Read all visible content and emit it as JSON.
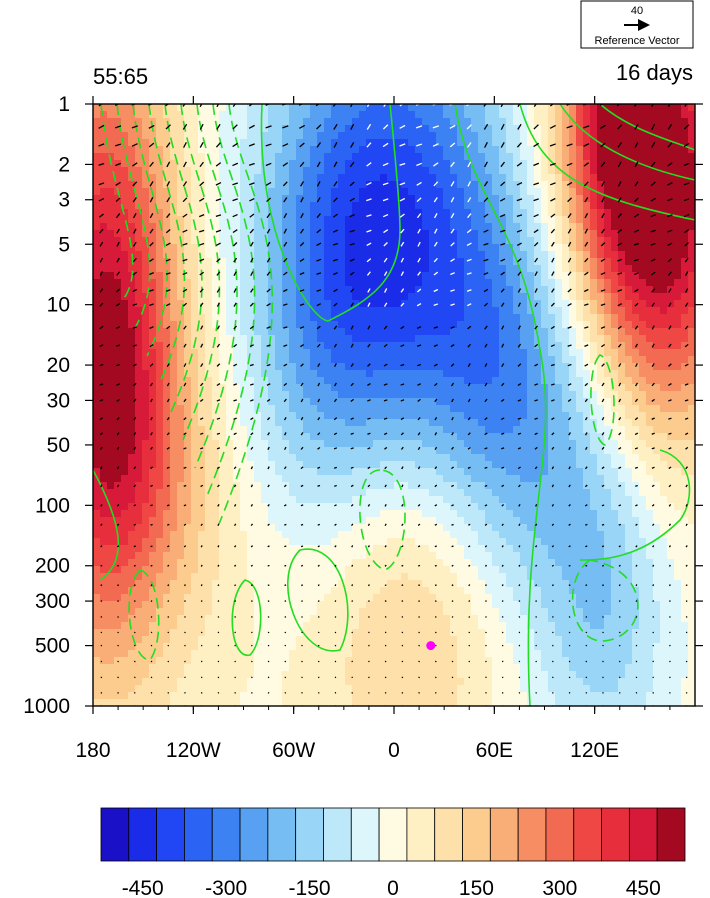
{
  "chart_data": {
    "type": "heatmap",
    "title_left": "55:65",
    "title_right": "16 days",
    "x_ticks": [
      {
        "lon": -180,
        "label": "180"
      },
      {
        "lon": -120,
        "label": "120W"
      },
      {
        "lon": -60,
        "label": "60W"
      },
      {
        "lon": 0,
        "label": "0"
      },
      {
        "lon": 60,
        "label": "60E"
      },
      {
        "lon": 120,
        "label": "120E"
      }
    ],
    "x_range": [
      -180,
      180
    ],
    "y_ticks": [
      {
        "p": 1,
        "label": "1"
      },
      {
        "p": 2,
        "label": "2"
      },
      {
        "p": 3,
        "label": "3"
      },
      {
        "p": 5,
        "label": "5"
      },
      {
        "p": 10,
        "label": "10"
      },
      {
        "p": 20,
        "label": "20"
      },
      {
        "p": 30,
        "label": "30"
      },
      {
        "p": 50,
        "label": "50"
      },
      {
        "p": 100,
        "label": "100"
      },
      {
        "p": 200,
        "label": "200"
      },
      {
        "p": 300,
        "label": "300"
      },
      {
        "p": 500,
        "label": "500"
      },
      {
        "p": 1000,
        "label": "1000"
      }
    ],
    "y_range": [
      1000,
      1
    ],
    "y_scale": "log",
    "colorbar": {
      "levels": [
        -525,
        -475,
        -425,
        -375,
        -325,
        -275,
        -225,
        -175,
        -125,
        -75,
        -25,
        25,
        75,
        125,
        175,
        225,
        275,
        325,
        375,
        425,
        475,
        525
      ],
      "colors": [
        "#1a10c8",
        "#1b2ce8",
        "#2147f4",
        "#2b63f5",
        "#3d82f2",
        "#58a0f2",
        "#76bdf4",
        "#99d5f7",
        "#bce8fa",
        "#dcf6fc",
        "#fffbe2",
        "#fff0c4",
        "#fde0aa",
        "#fccc8e",
        "#f9ae78",
        "#f68d63",
        "#f36a52",
        "#ee4744",
        "#e62e3c",
        "#d7193a",
        "#a30a22"
      ],
      "labels": [
        {
          "value": -450,
          "label": "-450"
        },
        {
          "value": -300,
          "label": "-300"
        },
        {
          "value": -150,
          "label": "-150"
        },
        {
          "value": 0,
          "label": "0"
        },
        {
          "value": 150,
          "label": "150"
        },
        {
          "value": 300,
          "label": "300"
        },
        {
          "value": 450,
          "label": "450"
        }
      ]
    },
    "reference_vector": {
      "magnitude": "40",
      "label": "Reference Vector"
    },
    "marker": {
      "lon": 22,
      "p": 500,
      "color": "#ff00ff"
    },
    "contour_color": "#22dd22",
    "field_blobs": [
      {
        "lon": -174,
        "p": 8,
        "rx": 42,
        "ry": 1.5,
        "value": 300
      },
      {
        "lon": -168,
        "p": 30,
        "rx": 40,
        "ry": 1.3,
        "value": 190
      },
      {
        "lon": -150,
        "p": 100,
        "rx": 60,
        "ry": 1.0,
        "value": 140
      },
      {
        "lon": -35,
        "p": 9,
        "rx": 55,
        "ry": 1.25,
        "value": -290
      },
      {
        "lon": 15,
        "p": 4,
        "rx": 60,
        "ry": 1.2,
        "value": -300
      },
      {
        "lon": 60,
        "p": 25,
        "rx": 45,
        "ry": 0.9,
        "value": -180
      },
      {
        "lon": 105,
        "p": 70,
        "rx": 50,
        "ry": 1.2,
        "value": -150
      },
      {
        "lon": 130,
        "p": 350,
        "rx": 35,
        "ry": 0.8,
        "value": -100
      },
      {
        "lon": 150,
        "p": 1.5,
        "rx": 55,
        "ry": 1.0,
        "value": 360
      },
      {
        "lon": 160,
        "p": 6,
        "rx": 45,
        "ry": 1.0,
        "value": 300
      },
      {
        "lon": 130,
        "p": 1.1,
        "rx": 30,
        "ry": 0.7,
        "value": 150
      },
      {
        "lon": 15,
        "p": 330,
        "rx": 65,
        "ry": 1.0,
        "value": 120
      },
      {
        "lon": -10,
        "p": 100,
        "rx": 55,
        "ry": 1.2,
        "value": 70
      },
      {
        "lon": -150,
        "p": 350,
        "rx": 35,
        "ry": 0.6,
        "value": -40
      }
    ]
  }
}
